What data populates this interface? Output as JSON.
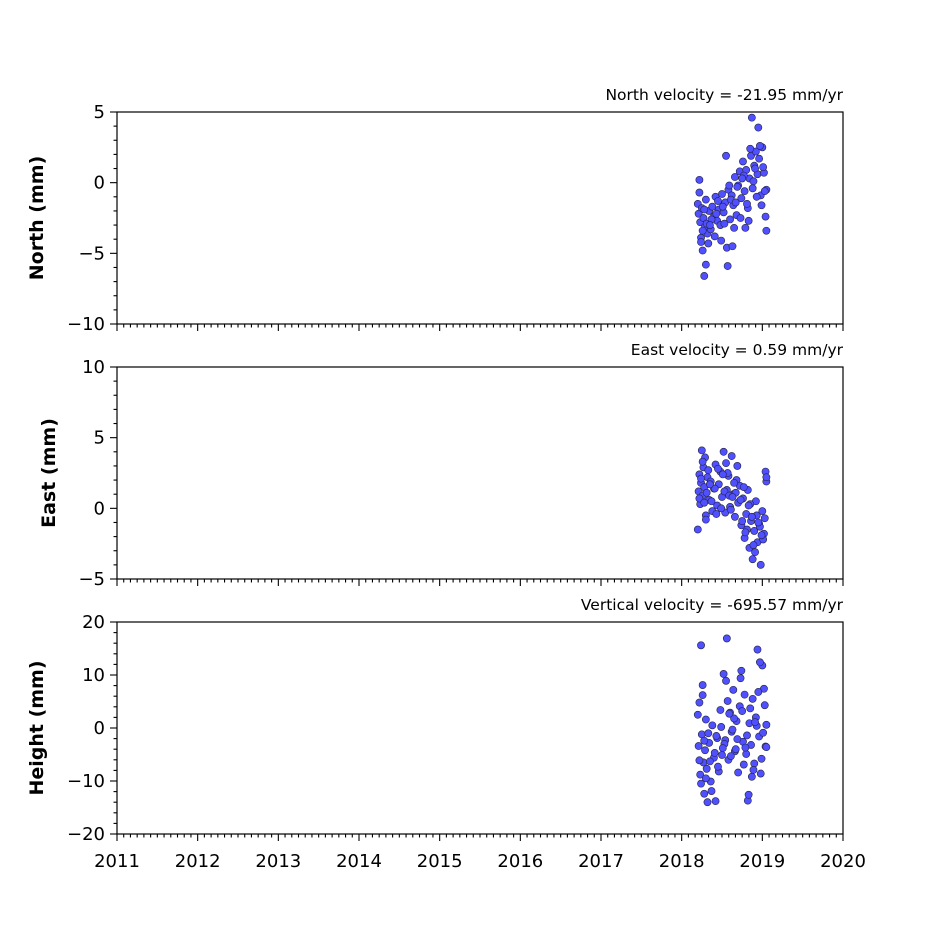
{
  "chart_data": [
    {
      "type": "scatter",
      "title": "North velocity = -21.95 mm/yr",
      "ylabel": "North (mm)",
      "xlabel": "",
      "ylim": [
        -10,
        5
      ],
      "yticks": [
        "−10",
        "−5",
        "0",
        "5"
      ],
      "ytick_values": [
        -10,
        -5,
        0,
        5
      ],
      "xlim": [
        2011,
        2020
      ],
      "show_xtick_labels": false,
      "grid": false,
      "marker_color": "#5050ff",
      "x": [
        2018.2,
        2018.21,
        2018.22,
        2018.23,
        2018.24,
        2018.25,
        2018.26,
        2018.27,
        2018.28,
        2018.29,
        2018.3,
        2018.31,
        2018.32,
        2018.34,
        2018.36,
        2018.38,
        2018.4,
        2018.42,
        2018.44,
        2018.46,
        2018.48,
        2018.5,
        2018.52,
        2018.54,
        2018.56,
        2018.58,
        2018.6,
        2018.62,
        2018.64,
        2018.66,
        2018.68,
        2018.7,
        2018.72,
        2018.74,
        2018.76,
        2018.78,
        2018.8,
        2018.82,
        2018.84,
        2018.86,
        2018.88,
        2018.9,
        2018.92,
        2018.94,
        2018.96,
        2018.98,
        2019.0,
        2019.02,
        2019.04,
        2019.05,
        2018.22,
        2018.26,
        2018.3,
        2018.33,
        2018.37,
        2018.41,
        2018.45,
        2018.49,
        2018.53,
        2018.57,
        2018.61,
        2018.65,
        2018.69,
        2018.73,
        2018.77,
        2018.81,
        2018.85,
        2018.89,
        2018.93,
        2018.97,
        2019.01,
        2019.03,
        2018.24,
        2018.28,
        2018.35,
        2018.43,
        2018.51,
        2018.59,
        2018.67,
        2018.75,
        2018.83,
        2018.91,
        2018.99,
        2018.87,
        2018.95,
        2018.55,
        2018.63,
        2018.79,
        2019.05
      ],
      "y": [
        -1.5,
        -2.2,
        0.2,
        -2.8,
        -3.9,
        -1.8,
        -4.8,
        -2.5,
        -6.6,
        -3.1,
        -1.2,
        -2.9,
        -3.6,
        -2.0,
        -3.3,
        -1.7,
        -2.4,
        -1.0,
        -2.7,
        -1.9,
        -3.0,
        -0.8,
        -2.1,
        -1.4,
        -4.6,
        -0.5,
        -2.6,
        -0.9,
        -1.6,
        0.4,
        -2.3,
        -0.2,
        0.8,
        -1.1,
        1.5,
        -0.6,
        0.9,
        -1.8,
        0.3,
        1.9,
        -0.4,
        1.2,
        2.2,
        0.6,
        1.7,
        -0.9,
        2.5,
        0.7,
        -2.4,
        -0.5,
        -0.7,
        -3.4,
        -5.8,
        -4.3,
        -2.6,
        -3.8,
        -1.3,
        -4.1,
        -2.9,
        -5.9,
        -1.2,
        -3.2,
        -0.3,
        -2.5,
        0.5,
        -1.5,
        2.4,
        0.1,
        -1.0,
        2.6,
        1.1,
        -0.6,
        -4.2,
        -1.9,
        -3.0,
        -2.2,
        -1.7,
        -0.2,
        -1.4,
        0.3,
        -2.7,
        1.0,
        -1.6,
        4.6,
        3.9,
        1.9,
        -4.5,
        -3.2,
        -3.4
      ]
    },
    {
      "type": "scatter",
      "title": "East velocity = 0.59 mm/yr",
      "ylabel": "East (mm)",
      "xlabel": "",
      "ylim": [
        -5,
        10
      ],
      "yticks": [
        "−5",
        "0",
        "5",
        "10"
      ],
      "ytick_values": [
        -5,
        0,
        5,
        10
      ],
      "xlim": [
        2011,
        2020
      ],
      "show_xtick_labels": false,
      "grid": false,
      "marker_color": "#5050ff",
      "x": [
        2018.2,
        2018.21,
        2018.22,
        2018.23,
        2018.24,
        2018.25,
        2018.26,
        2018.27,
        2018.28,
        2018.29,
        2018.3,
        2018.31,
        2018.32,
        2018.34,
        2018.36,
        2018.38,
        2018.4,
        2018.42,
        2018.44,
        2018.46,
        2018.48,
        2018.5,
        2018.52,
        2018.54,
        2018.56,
        2018.58,
        2018.6,
        2018.62,
        2018.64,
        2018.66,
        2018.68,
        2018.7,
        2018.72,
        2018.74,
        2018.76,
        2018.78,
        2018.8,
        2018.82,
        2018.84,
        2018.86,
        2018.88,
        2018.9,
        2018.92,
        2018.94,
        2018.96,
        2018.98,
        2019.0,
        2019.02,
        2019.04,
        2019.05,
        2018.22,
        2018.26,
        2018.3,
        2018.33,
        2018.37,
        2018.41,
        2018.45,
        2018.49,
        2018.53,
        2018.57,
        2018.61,
        2018.65,
        2018.69,
        2018.73,
        2018.77,
        2018.81,
        2018.85,
        2018.89,
        2018.93,
        2018.97,
        2019.01,
        2019.03,
        2018.24,
        2018.28,
        2018.35,
        2018.43,
        2018.51,
        2018.59,
        2018.67,
        2018.75,
        2018.83,
        2018.91,
        2018.99,
        2018.87,
        2018.95,
        2018.55,
        2018.63,
        2018.79,
        2019.05
      ],
      "y": [
        -1.5,
        1.2,
        2.4,
        0.3,
        1.8,
        4.1,
        0.9,
        2.9,
        1.5,
        3.6,
        -0.5,
        1.1,
        2.2,
        0.6,
        1.9,
        -0.2,
        1.4,
        3.1,
        0.2,
        1.7,
        2.6,
        0.8,
        4.0,
        -0.3,
        1.3,
        2.3,
        0.1,
        3.7,
        1.0,
        -0.6,
        2.0,
        0.4,
        1.6,
        -1.2,
        0.7,
        -2.1,
        -0.4,
        1.3,
        -2.8,
        -0.9,
        -3.6,
        -1.6,
        0.5,
        -2.4,
        -1.1,
        -4.0,
        -0.2,
        -1.8,
        2.6,
        1.9,
        0.7,
        3.3,
        -0.8,
        2.7,
        0.5,
        1.4,
        2.8,
        0.0,
        1.2,
        2.5,
        -0.1,
        1.8,
        3.0,
        0.6,
        1.5,
        -1.5,
        0.3,
        -2.6,
        -0.5,
        -1.3,
        -2.2,
        -0.7,
        2.1,
        0.4,
        1.7,
        -0.4,
        2.4,
        0.9,
        1.1,
        -0.9,
        0.2,
        -3.1,
        -1.9,
        -0.6,
        -1.0,
        3.2,
        0.8,
        -1.7,
        2.2
      ]
    },
    {
      "type": "scatter",
      "title": "Vertical velocity = -695.57 mm/yr",
      "ylabel": "Height (mm)",
      "xlabel": "",
      "ylim": [
        -20,
        20
      ],
      "yticks": [
        "−20",
        "−10",
        "0",
        "10",
        "20"
      ],
      "ytick_values": [
        -20,
        -10,
        0,
        10,
        20
      ],
      "xlim": [
        2011,
        2020
      ],
      "xticks": [
        "2011",
        "2012",
        "2013",
        "2014",
        "2015",
        "2016",
        "2017",
        "2018",
        "2019",
        "2020"
      ],
      "xtick_values": [
        2011,
        2012,
        2013,
        2014,
        2015,
        2016,
        2017,
        2018,
        2019,
        2020
      ],
      "show_xtick_labels": true,
      "grid": false,
      "marker_color": "#5050ff",
      "x": [
        2018.2,
        2018.21,
        2018.22,
        2018.23,
        2018.24,
        2018.25,
        2018.26,
        2018.27,
        2018.28,
        2018.29,
        2018.3,
        2018.31,
        2018.32,
        2018.34,
        2018.36,
        2018.38,
        2018.4,
        2018.42,
        2018.44,
        2018.46,
        2018.48,
        2018.5,
        2018.52,
        2018.54,
        2018.56,
        2018.58,
        2018.6,
        2018.62,
        2018.64,
        2018.66,
        2018.68,
        2018.7,
        2018.72,
        2018.74,
        2018.76,
        2018.78,
        2018.8,
        2018.82,
        2018.84,
        2018.86,
        2018.88,
        2018.9,
        2018.92,
        2018.94,
        2018.96,
        2018.98,
        2019.0,
        2019.02,
        2019.04,
        2019.05,
        2018.22,
        2018.26,
        2018.3,
        2018.33,
        2018.37,
        2018.41,
        2018.45,
        2018.49,
        2018.53,
        2018.57,
        2018.61,
        2018.65,
        2018.69,
        2018.73,
        2018.77,
        2018.81,
        2018.85,
        2018.89,
        2018.93,
        2018.97,
        2019.01,
        2019.03,
        2018.24,
        2018.28,
        2018.35,
        2018.43,
        2018.51,
        2018.59,
        2018.67,
        2018.75,
        2018.83,
        2018.91,
        2018.99,
        2018.87,
        2018.95,
        2018.55,
        2018.63,
        2018.79,
        2019.05
      ],
      "y": [
        2.5,
        -3.4,
        4.8,
        -8.8,
        15.6,
        -1.2,
        6.2,
        -6.5,
        -12.4,
        -4.2,
        1.6,
        -7.7,
        -14.0,
        -2.8,
        -10.1,
        0.5,
        -5.6,
        -13.8,
        -1.9,
        -8.2,
        3.4,
        -5.1,
        10.2,
        -2.3,
        16.9,
        -6.0,
        2.9,
        -0.7,
        7.2,
        -4.4,
        1.3,
        -8.4,
        4.1,
        10.8,
        -2.6,
        6.3,
        -4.9,
        -13.7,
        0.9,
        -3.2,
        5.5,
        -6.7,
        2.0,
        14.8,
        -1.6,
        -8.6,
        11.8,
        7.4,
        -3.5,
        0.6,
        -6.1,
        8.1,
        -9.5,
        -1.0,
        -11.9,
        -4.7,
        -7.3,
        0.2,
        -3.0,
        5.1,
        -5.3,
        1.8,
        -2.1,
        9.4,
        -6.9,
        -1.4,
        3.7,
        -7.9,
        0.4,
        12.4,
        -0.9,
        4.3,
        -10.5,
        -2.4,
        -6.3,
        -1.5,
        -3.8,
        2.7,
        -4.0,
        3.2,
        -12.6,
        1.1,
        -5.8,
        -9.2,
        6.8,
        8.9,
        -0.3,
        -3.7,
        -3.6
      ]
    }
  ]
}
